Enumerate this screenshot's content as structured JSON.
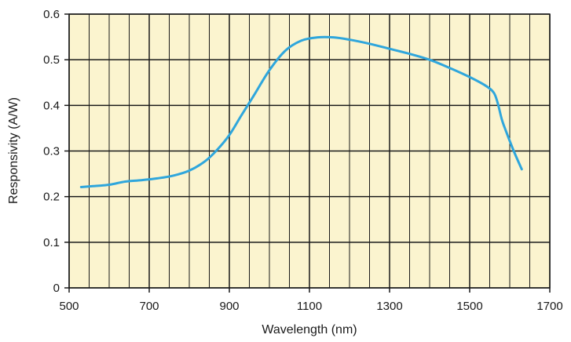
{
  "chart_data": {
    "type": "line",
    "title": "",
    "xlabel": "Wavelength (nm)",
    "ylabel": "Responsivity (A/W)",
    "xlim": [
      500,
      1700
    ],
    "ylim": [
      0,
      0.6
    ],
    "x_major_ticks": [
      500,
      700,
      900,
      1100,
      1300,
      1500,
      1700
    ],
    "x_tick_labels": [
      "500",
      "700",
      "900",
      "1100",
      "1300",
      "1500",
      "1700"
    ],
    "y_major_ticks": [
      0,
      0.1,
      0.2,
      0.3,
      0.4,
      0.5,
      0.6
    ],
    "y_tick_labels": [
      "0",
      "0.1",
      "0.2",
      "0.3",
      "0.4",
      "0.5",
      "0.6"
    ],
    "x_minor_step": 50,
    "grid": true,
    "plot_background": "#fbf4cf",
    "grid_color": "#1a1a1a",
    "line_color": "#2fa6dc",
    "series": [
      {
        "x": [
          530,
          560,
          600,
          640,
          680,
          720,
          760,
          800,
          840,
          870,
          900,
          930,
          960,
          1000,
          1040,
          1080,
          1120,
          1160,
          1200,
          1250,
          1300,
          1350,
          1400,
          1450,
          1500,
          1540,
          1560,
          1570,
          1580,
          1590,
          1610,
          1630
        ],
        "y": [
          0.221,
          0.223,
          0.226,
          0.233,
          0.236,
          0.24,
          0.246,
          0.257,
          0.278,
          0.303,
          0.335,
          0.378,
          0.42,
          0.477,
          0.52,
          0.542,
          0.549,
          0.549,
          0.544,
          0.535,
          0.524,
          0.513,
          0.5,
          0.482,
          0.462,
          0.443,
          0.428,
          0.405,
          0.37,
          0.345,
          0.3,
          0.26
        ]
      }
    ]
  }
}
